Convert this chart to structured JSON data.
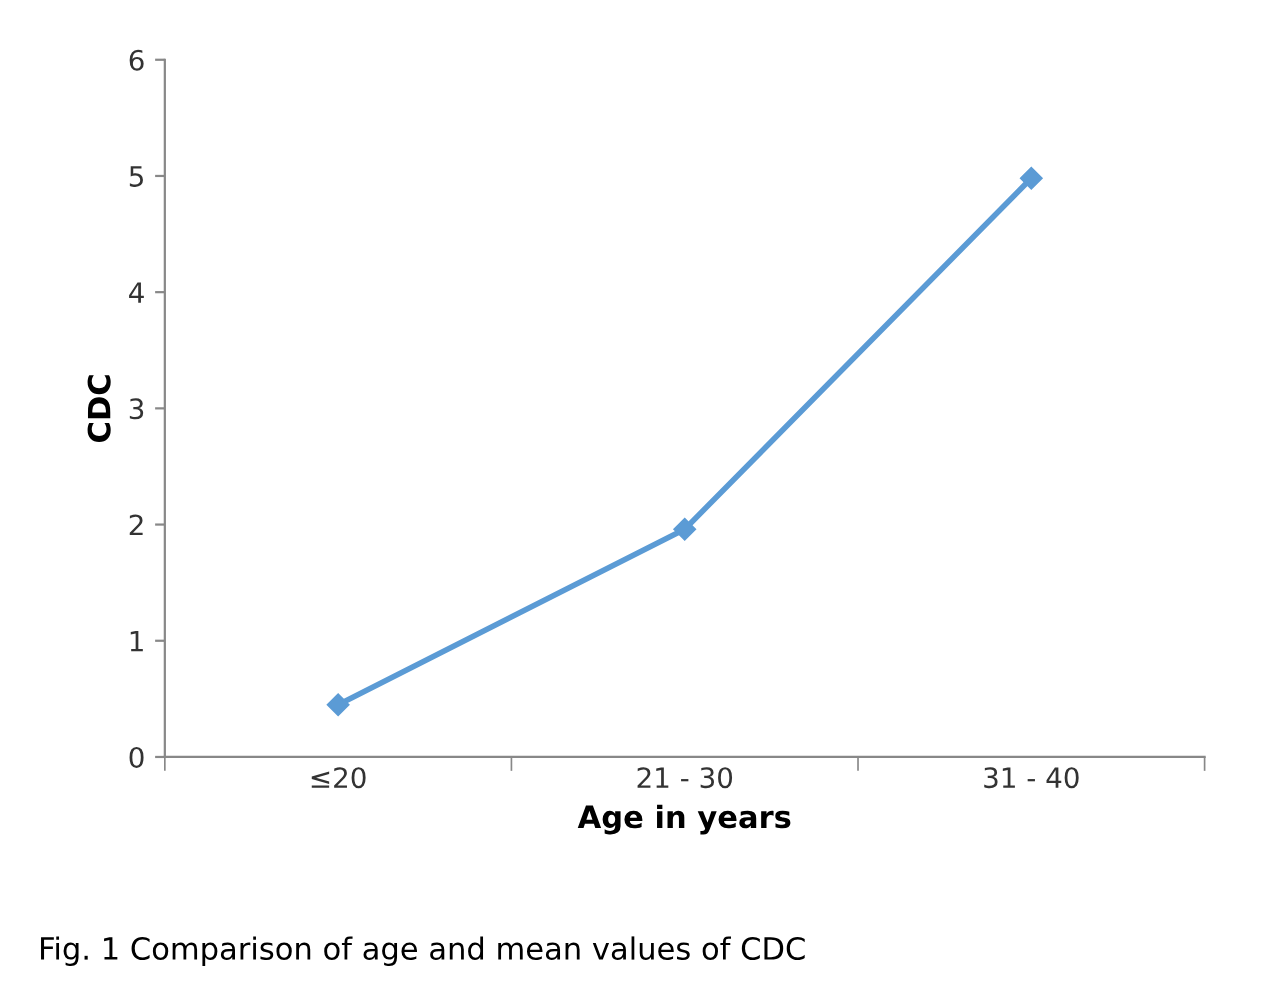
{
  "chart_data": {
    "type": "line",
    "xlabel": "Age in years",
    "ylabel": "CDC",
    "categories": [
      "≤20",
      "21 - 30",
      "31 - 40"
    ],
    "series": [
      {
        "color": "#5b9bd5",
        "values": [
          0.45,
          1.96,
          4.98
        ]
      }
    ],
    "ylim": [
      0,
      6
    ],
    "yticks": [
      0,
      1,
      2,
      3,
      4,
      5,
      6
    ],
    "grid": false,
    "legend": false,
    "marker": "diamond",
    "line_style": "solid",
    "annotations": [
      "Fig. 1 Comparison of age and mean values of CDC"
    ]
  }
}
